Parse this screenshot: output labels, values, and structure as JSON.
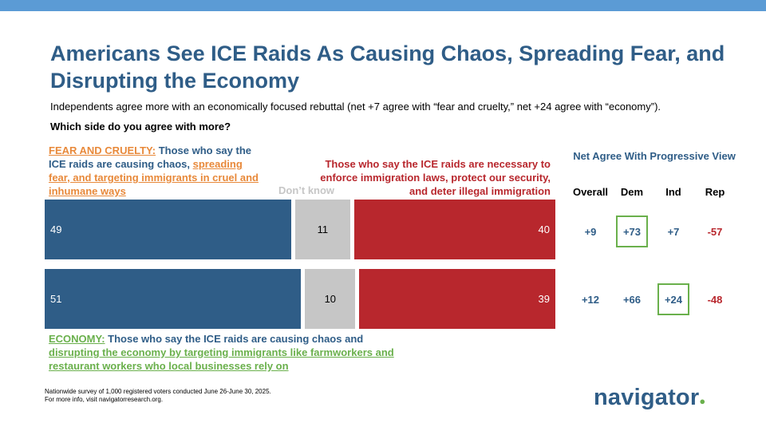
{
  "title": "Americans See ICE Raids As Causing Chaos, Spreading Fear, and Disrupting the Economy",
  "subtitle": "Independents agree more with an economically focused rebuttal (net +7 agree with “fear and cruelty,” net +24 agree with “economy”).",
  "question": "Which side do you agree with more?",
  "labels": {
    "fear_prefix": "FEAR AND CRUELTY:",
    "fear_text_1": " Those who say the ICE raids are causing chaos, ",
    "fear_text_2": "spreading fear, and targeting immigrants in cruel and inhumane ways",
    "dont_know": "Don’t know",
    "rebuttal": "Those who say the ICE raids are necessary to enforce immigration laws, protect our security, and deter illegal immigration",
    "economy_prefix": "ECONOMY:",
    "economy_text_1": " Those who say the ICE raids are causing chaos and ",
    "economy_text_2": "disrupting the economy by targeting immigrants like farmworkers and restaurant workers who local businesses rely on"
  },
  "chart_data": {
    "type": "bar",
    "orientation": "horizontal",
    "stacked": true,
    "categories": [
      "FEAR AND CRUELTY",
      "ECONOMY"
    ],
    "series": [
      {
        "name": "Progressive view",
        "values": [
          49,
          51
        ],
        "color": "#2f5d87"
      },
      {
        "name": "Don’t know",
        "values": [
          11,
          10
        ],
        "color": "#c6c6c6"
      },
      {
        "name": "Rebuttal",
        "values": [
          40,
          39
        ],
        "color": "#b8272d"
      }
    ]
  },
  "net_table": {
    "title": "Net Agree With Progressive View",
    "columns": [
      "Overall",
      "Dem",
      "Ind",
      "Rep"
    ],
    "rows": [
      [
        "+9",
        "+73",
        "+7",
        "-57"
      ],
      [
        "+12",
        "+66",
        "+24",
        "-48"
      ]
    ],
    "highlighted": [
      [
        0,
        1
      ],
      [
        1,
        2
      ]
    ],
    "highlight_color": "#6ab04c"
  },
  "footnote": {
    "line1": "Nationwide survey of 1,000 registered voters conducted June 26-June 30, 2025.",
    "line2": "For more info, visit navigatorresearch.org."
  },
  "logo": {
    "text": "navigator",
    "dot": "●"
  },
  "colors": {
    "blue": "#2f5d87",
    "red": "#b8272d",
    "gray": "#c6c6c6",
    "orange": "#e8893a",
    "green": "#6ab04c",
    "topbar": "#5b9bd5"
  }
}
